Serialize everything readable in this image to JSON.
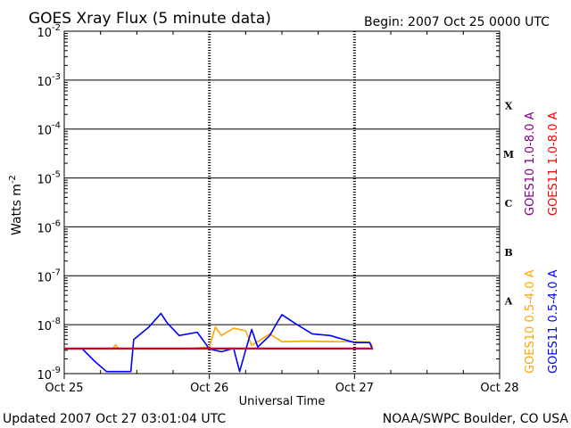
{
  "header": {
    "title": "GOES Xray Flux (5 minute data)",
    "begin": "Begin:  2007 Oct 25 0000 UTC"
  },
  "footer": {
    "updated": "Updated 2007 Oct 27 03:01:04 UTC",
    "credit": "NOAA/SWPC Boulder, CO USA"
  },
  "chart_data": {
    "type": "line",
    "title": "GOES Xray Flux (5 minute data)",
    "xlabel": "Universal Time",
    "ylabel": "Watts m",
    "ylabel_sup": "-2",
    "yscale": "log",
    "ylim": [
      1e-09,
      0.01
    ],
    "xlim": [
      "2007-10-25T00:00",
      "2007-10-28T00:00"
    ],
    "x_ticks": [
      "Oct 25",
      "Oct 26",
      "Oct 27",
      "Oct 28"
    ],
    "y_ticks": [
      {
        "base": "10",
        "exp": "-2"
      },
      {
        "base": "10",
        "exp": "-3"
      },
      {
        "base": "10",
        "exp": "-4"
      },
      {
        "base": "10",
        "exp": "-5"
      },
      {
        "base": "10",
        "exp": "-6"
      },
      {
        "base": "10",
        "exp": "-7"
      },
      {
        "base": "10",
        "exp": "-8"
      },
      {
        "base": "10",
        "exp": "-9"
      }
    ],
    "flare_classes": [
      "X",
      "M",
      "C",
      "B",
      "A"
    ],
    "grid": true,
    "series": [
      {
        "name": "GOES10 1.0-8.0 A",
        "color": "#800080",
        "x": [
          "2007-10-25T00:00",
          "2007-10-25T12:00",
          "2007-10-26T00:00",
          "2007-10-26T12:00",
          "2007-10-27T03:00"
        ],
        "values": [
          3.3e-09,
          3.3e-09,
          3.3e-09,
          3.3e-09,
          3.3e-09
        ]
      },
      {
        "name": "GOES11 1.0-8.0 A",
        "color": "#ff0000",
        "x": [
          "2007-10-25T00:00",
          "2007-10-25T12:00",
          "2007-10-26T00:00",
          "2007-10-26T12:00",
          "2007-10-27T03:00"
        ],
        "values": [
          3.2e-09,
          3.2e-09,
          3.2e-09,
          3.2e-09,
          3.2e-09
        ]
      },
      {
        "name": "GOES10 0.5-4.0 A",
        "color": "#ffa500",
        "x": [
          "2007-10-25T00:00",
          "2007-10-25T08:00",
          "2007-10-25T08:30",
          "2007-10-25T09:00",
          "2007-10-25T12:00",
          "2007-10-25T16:00",
          "2007-10-25T20:00",
          "2007-10-26T00:00",
          "2007-10-26T01:00",
          "2007-10-26T02:00",
          "2007-10-26T04:00",
          "2007-10-26T06:00",
          "2007-10-26T07:00",
          "2007-10-26T08:00",
          "2007-10-26T10:00",
          "2007-10-26T12:00",
          "2007-10-26T16:00",
          "2007-10-26T20:00",
          "2007-10-27T00:00",
          "2007-10-27T02:30",
          "2007-10-27T03:00"
        ],
        "values": [
          3.2e-09,
          3.2e-09,
          3.9e-09,
          3.2e-09,
          3.2e-09,
          3.2e-09,
          3.2e-09,
          3.5e-09,
          9e-09,
          6e-09,
          8.5e-09,
          7.5e-09,
          3.8e-09,
          4.5e-09,
          6.5e-09,
          4.5e-09,
          4.6e-09,
          4.5e-09,
          4.5e-09,
          4.4e-09,
          3.6e-09
        ]
      },
      {
        "name": "GOES11 0.5-4.0 A",
        "color": "#0000ff",
        "x": [
          "2007-10-25T00:00",
          "2007-10-25T03:00",
          "2007-10-25T05:00",
          "2007-10-25T07:00",
          "2007-10-25T10:00",
          "2007-10-25T11:00",
          "2007-10-25T11:30",
          "2007-10-25T14:00",
          "2007-10-25T16:00",
          "2007-10-25T17:00",
          "2007-10-25T19:00",
          "2007-10-25T22:00",
          "2007-10-26T00:00",
          "2007-10-26T02:00",
          "2007-10-26T04:00",
          "2007-10-26T05:00",
          "2007-10-26T06:00",
          "2007-10-26T07:00",
          "2007-10-26T08:00",
          "2007-10-26T10:00",
          "2007-10-26T11:00",
          "2007-10-26T12:00",
          "2007-10-26T14:00",
          "2007-10-26T17:00",
          "2007-10-26T20:00",
          "2007-10-27T00:00",
          "2007-10-27T02:30",
          "2007-10-27T03:00"
        ],
        "values": [
          3.2e-09,
          3.2e-09,
          1.8e-09,
          1.1e-09,
          1.1e-09,
          1.1e-09,
          5e-09,
          9e-09,
          1.7e-08,
          1.1e-08,
          6e-09,
          7e-09,
          3.2e-09,
          2.8e-09,
          3.3e-09,
          1.1e-09,
          3e-09,
          8e-09,
          3.5e-09,
          6e-09,
          1e-08,
          1.6e-08,
          1.1e-08,
          6.5e-09,
          6e-09,
          4.3e-09,
          4.3e-09,
          3.1e-09
        ]
      }
    ]
  }
}
